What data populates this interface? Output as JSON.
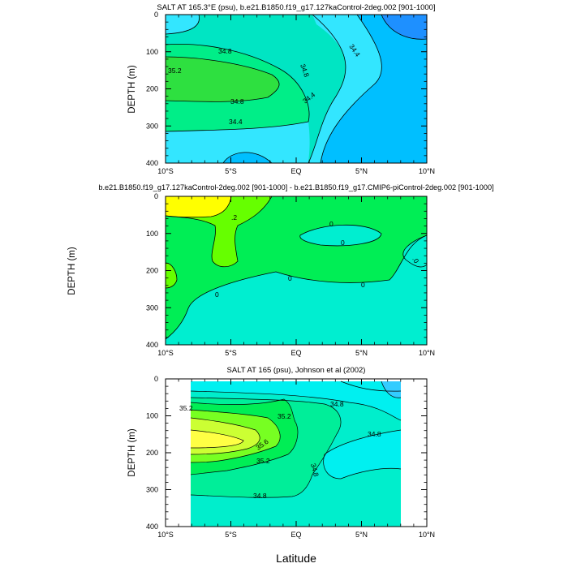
{
  "chart_data": [
    {
      "type": "contour",
      "title": "SALT AT 165.3°E (psu), b.e21.B1850.f19_g17.127kaControl-2deg.002 [901-1000]",
      "xlabel": "",
      "ylabel": "DEPTH (m)",
      "x_ticks": [
        "10°S",
        "5°S",
        "EQ",
        "5°N",
        "10°N"
      ],
      "y_ticks": [
        "0",
        "100",
        "200",
        "300",
        "400"
      ],
      "xlim": [
        -10,
        10
      ],
      "ylim": [
        400,
        0
      ],
      "contour_labels": [
        "35.2",
        "34.8",
        "34.8",
        "34.4",
        "34.4",
        "34.8",
        "34.4"
      ],
      "colors": [
        "#1e90ff",
        "#00bfff",
        "#33e6ff",
        "#00e5c3",
        "#00ee88",
        "#2ee040"
      ]
    },
    {
      "type": "contour",
      "title": "b.e21.B1850.f19_g17.127kaControl-2deg.002 [901-1000] - b.e21.B1850.f19_g17.CMIP6-piControl-2deg.002 [901-1000]",
      "xlabel": "",
      "ylabel": "DEPTH (m)",
      "x_ticks": [
        "10°S",
        "5°S",
        "EQ",
        "5°N",
        "10°N"
      ],
      "y_ticks": [
        "0",
        "100",
        "200",
        "300",
        "400"
      ],
      "xlim": [
        -10,
        10
      ],
      "ylim": [
        400,
        0
      ],
      "contour_labels": [
        ".2",
        "0",
        "0",
        "0",
        "0",
        "0",
        ".0"
      ],
      "colors": [
        "#ffff00",
        "#66ff00",
        "#00ee55",
        "#00eed0"
      ]
    },
    {
      "type": "contour",
      "title": "SALT AT 165 (psu), Johnson et al (2002)",
      "xlabel": "Latitude",
      "ylabel": "DEPTH (m)",
      "x_ticks": [
        "10°S",
        "5°S",
        "EQ",
        "5°N",
        "10°N"
      ],
      "y_ticks": [
        "0",
        "100",
        "200",
        "300",
        "400"
      ],
      "xlim": [
        -10,
        10
      ],
      "ylim": [
        400,
        0
      ],
      "contour_labels": [
        "35.2",
        "35.2",
        "35.6",
        "35.2",
        "34.8",
        "34.8",
        "34.8",
        "34.8"
      ],
      "colors": [
        "#ffff44",
        "#ccff33",
        "#77ff22",
        "#00ee55",
        "#00ee99",
        "#00eecc",
        "#00f0f0",
        "#33ccff"
      ]
    }
  ]
}
